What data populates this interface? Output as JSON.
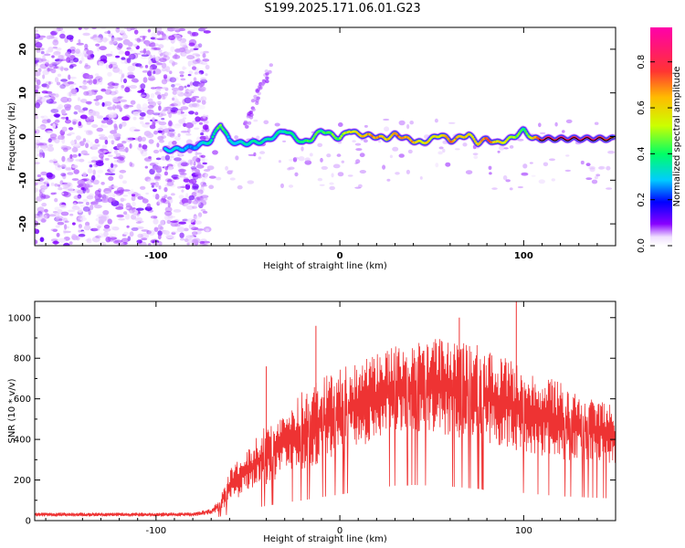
{
  "figure": {
    "title": "S199.2025.171.06.01.G23"
  },
  "chart_data": [
    {
      "type": "heatmap",
      "xlabel": "Height of straight line (km)",
      "ylabel": "Frequency (Hz)",
      "xlim": [
        -166,
        150
      ],
      "ylim": [
        -25,
        25
      ],
      "xticks": [
        -100,
        0,
        100
      ],
      "yticks": [
        -20,
        -10,
        0,
        10,
        20
      ],
      "grid": false,
      "colorbar": {
        "label": "Normalized spectral amplitude",
        "range": [
          0,
          0.95
        ],
        "ticks": [
          0.0,
          0.2,
          0.4,
          0.6,
          0.8
        ]
      },
      "ridge": {
        "x": [
          -90,
          -80,
          -70,
          -65,
          -60,
          -55,
          -50,
          -40,
          -30,
          -20,
          -15,
          -10,
          -5,
          0,
          5,
          10,
          20,
          25,
          30,
          40,
          45,
          50,
          55,
          60,
          70,
          75,
          80,
          85,
          90,
          95,
          100,
          105,
          110,
          120,
          130,
          140,
          148
        ],
        "y": [
          -3,
          -2.5,
          -1,
          3,
          -1,
          -1.5,
          -1.5,
          -1,
          1.5,
          -1.5,
          -0.5,
          1.5,
          0.5,
          -0.5,
          1.5,
          0.5,
          0,
          -0.5,
          0.5,
          -1,
          -1.5,
          -0.5,
          0.5,
          -1,
          0.5,
          -1.5,
          -0.5,
          -1.5,
          -1,
          0,
          1.5,
          -0.5,
          -0.5,
          -0.5,
          -0.5,
          -0.5,
          -0.5
        ],
        "amp": [
          0.3,
          0.25,
          0.35,
          0.45,
          0.3,
          0.3,
          0.35,
          0.35,
          0.35,
          0.4,
          0.45,
          0.4,
          0.45,
          0.45,
          0.55,
          0.6,
          0.7,
          0.6,
          0.7,
          0.65,
          0.55,
          0.6,
          0.55,
          0.7,
          0.6,
          0.65,
          0.75,
          0.6,
          0.55,
          0.5,
          0.4,
          0.6,
          0.85,
          0.9,
          0.9,
          0.85,
          0.8
        ]
      },
      "noise_region": {
        "x_range": [
          -166,
          -80
        ],
        "y_range": [
          -25,
          25
        ]
      }
    },
    {
      "type": "line",
      "xlabel": "Height of straight line (km)",
      "ylabel": "SNR (10 * v/v)",
      "xlim": [
        -166,
        150
      ],
      "ylim": [
        0,
        1080
      ],
      "xticks": [
        -100,
        0,
        100
      ],
      "yticks": [
        0,
        200,
        400,
        600,
        800,
        1000
      ],
      "grid": false,
      "series": [
        {
          "color": "#ee3333",
          "envelope": {
            "x": [
              -166,
              -80,
              -70,
              -65,
              -60,
              -50,
              -40,
              -30,
              -20,
              -10,
              0,
              10,
              20,
              30,
              40,
              50,
              60,
              70,
              80,
              90,
              100,
              110,
              120,
              130,
              140,
              150
            ],
            "upper": [
              40,
              40,
              60,
              120,
              250,
              350,
              480,
              560,
              640,
              700,
              750,
              780,
              820,
              860,
              880,
              900,
              910,
              880,
              850,
              800,
              760,
              720,
              680,
              640,
              600,
              560
            ],
            "lower": [
              20,
              20,
              30,
              50,
              80,
              150,
              180,
              220,
              250,
              290,
              320,
              360,
              400,
              430,
              440,
              430,
              420,
              400,
              380,
              360,
              340,
              320,
              300,
              290,
              280,
              270
            ]
          },
          "spikes": [
            {
              "x": -40,
              "y": 760
            },
            {
              "x": -13,
              "y": 960
            },
            {
              "x": 65,
              "y": 1000
            },
            {
              "x": 96,
              "y": 1080
            }
          ]
        }
      ]
    }
  ],
  "colors": {
    "line": "#ee3333",
    "colormap": [
      "#ffffff",
      "#8800ff",
      "#0000ff",
      "#00ccff",
      "#00ff66",
      "#ccff00",
      "#ffbb00",
      "#ff3333",
      "#ff00aa"
    ]
  }
}
